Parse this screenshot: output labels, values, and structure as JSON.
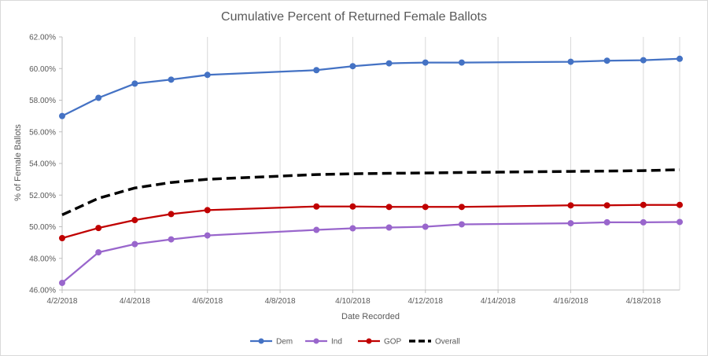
{
  "chart_data": {
    "type": "line",
    "title": "Cumulative Percent of Returned Female Ballots",
    "xlabel": "Date Recorded",
    "ylabel": "% of Female Ballots",
    "ylim": [
      46,
      62
    ],
    "y_ticks": [
      "46.00%",
      "48.00%",
      "50.00%",
      "52.00%",
      "54.00%",
      "56.00%",
      "58.00%",
      "60.00%",
      "62.00%"
    ],
    "x_ticks": [
      "4/2/2018",
      "4/4/2018",
      "4/6/2018",
      "4/8/2018",
      "4/10/2018",
      "4/12/2018",
      "4/14/2018",
      "4/16/2018",
      "4/18/2018"
    ],
    "x_range": [
      "2018-04-02",
      "2018-04-19"
    ],
    "grid": "vertical",
    "legend_position": "bottom",
    "x": [
      "2018-04-02",
      "2018-04-03",
      "2018-04-04",
      "2018-04-05",
      "2018-04-06",
      "2018-04-09",
      "2018-04-10",
      "2018-04-11",
      "2018-04-12",
      "2018-04-13",
      "2018-04-16",
      "2018-04-17",
      "2018-04-18",
      "2018-04-19"
    ],
    "series": [
      {
        "name": "Dem",
        "color": "#4472c4",
        "style": "solid",
        "markers": true,
        "values": [
          57.0,
          58.15,
          59.05,
          59.3,
          59.6,
          59.9,
          60.15,
          60.33,
          60.38,
          60.38,
          60.43,
          60.5,
          60.53,
          60.62
        ]
      },
      {
        "name": "Ind",
        "color": "#9966cc",
        "style": "solid",
        "markers": true,
        "values": [
          46.45,
          48.38,
          48.9,
          49.2,
          49.45,
          49.8,
          49.9,
          49.95,
          50.0,
          50.15,
          50.22,
          50.28,
          50.28,
          50.3
        ]
      },
      {
        "name": "GOP",
        "color": "#c00000",
        "style": "solid",
        "markers": true,
        "values": [
          49.28,
          49.92,
          50.42,
          50.8,
          51.05,
          51.28,
          51.28,
          51.25,
          51.25,
          51.25,
          51.35,
          51.35,
          51.38,
          51.38
        ]
      },
      {
        "name": "Overall",
        "color": "#000000",
        "style": "dashed",
        "markers": false,
        "values": [
          50.75,
          51.8,
          52.45,
          52.8,
          53.0,
          53.3,
          53.35,
          53.38,
          53.4,
          53.43,
          53.5,
          53.52,
          53.55,
          53.6
        ]
      }
    ]
  }
}
